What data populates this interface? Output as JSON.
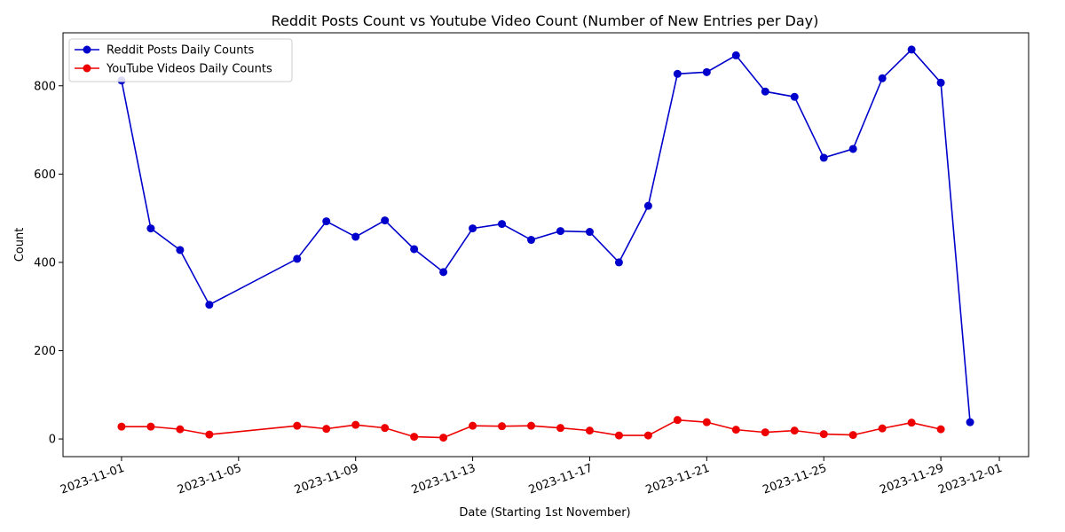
{
  "chart_data": {
    "type": "line",
    "title": "Reddit Posts Count vs Youtube Video Count (Number of New Entries per Day)",
    "xlabel": "Date (Starting 1st November)",
    "ylabel": "Count",
    "x_range": [
      "2023-10-30",
      "2023-12-02"
    ],
    "ylim": [
      -40,
      920
    ],
    "x_ticks": [
      "2023-11-01",
      "2023-11-05",
      "2023-11-09",
      "2023-11-13",
      "2023-11-17",
      "2023-11-21",
      "2023-11-25",
      "2023-11-29",
      "2023-12-01"
    ],
    "y_ticks": [
      0,
      200,
      400,
      600,
      800
    ],
    "grid": false,
    "legend_position": "top-left",
    "series": [
      {
        "name": "Reddit Posts Daily Counts",
        "color": "#0000cc",
        "points": [
          [
            "2023-11-01",
            812
          ],
          [
            "2023-11-02",
            477
          ],
          [
            "2023-11-03",
            428
          ],
          [
            "2023-11-04",
            304
          ],
          [
            "2023-11-07",
            408
          ],
          [
            "2023-11-08",
            493
          ],
          [
            "2023-11-09",
            458
          ],
          [
            "2023-11-10",
            495
          ],
          [
            "2023-11-11",
            430
          ],
          [
            "2023-11-12",
            378
          ],
          [
            "2023-11-13",
            477
          ],
          [
            "2023-11-14",
            487
          ],
          [
            "2023-11-15",
            451
          ],
          [
            "2023-11-16",
            471
          ],
          [
            "2023-11-17",
            469
          ],
          [
            "2023-11-18",
            400
          ],
          [
            "2023-11-19",
            528
          ],
          [
            "2023-11-20",
            827
          ],
          [
            "2023-11-21",
            831
          ],
          [
            "2023-11-22",
            869
          ],
          [
            "2023-11-23",
            787
          ],
          [
            "2023-11-24",
            775
          ],
          [
            "2023-11-25",
            637
          ],
          [
            "2023-11-26",
            657
          ],
          [
            "2023-11-27",
            817
          ],
          [
            "2023-11-28",
            882
          ],
          [
            "2023-11-29",
            807
          ],
          [
            "2023-11-30",
            38
          ]
        ]
      },
      {
        "name": "YouTube Videos Daily Counts",
        "color": "#ee0000",
        "points": [
          [
            "2023-11-01",
            28
          ],
          [
            "2023-11-02",
            28
          ],
          [
            "2023-11-03",
            22
          ],
          [
            "2023-11-04",
            10
          ],
          [
            "2023-11-07",
            30
          ],
          [
            "2023-11-08",
            23
          ],
          [
            "2023-11-09",
            32
          ],
          [
            "2023-11-10",
            25
          ],
          [
            "2023-11-11",
            5
          ],
          [
            "2023-11-12",
            3
          ],
          [
            "2023-11-13",
            30
          ],
          [
            "2023-11-14",
            29
          ],
          [
            "2023-11-15",
            30
          ],
          [
            "2023-11-16",
            25
          ],
          [
            "2023-11-17",
            19
          ],
          [
            "2023-11-18",
            8
          ],
          [
            "2023-11-19",
            8
          ],
          [
            "2023-11-20",
            43
          ],
          [
            "2023-11-21",
            38
          ],
          [
            "2023-11-22",
            21
          ],
          [
            "2023-11-23",
            15
          ],
          [
            "2023-11-24",
            19
          ],
          [
            "2023-11-25",
            11
          ],
          [
            "2023-11-26",
            9
          ],
          [
            "2023-11-27",
            24
          ],
          [
            "2023-11-28",
            37
          ],
          [
            "2023-11-29",
            22
          ]
        ]
      }
    ]
  }
}
